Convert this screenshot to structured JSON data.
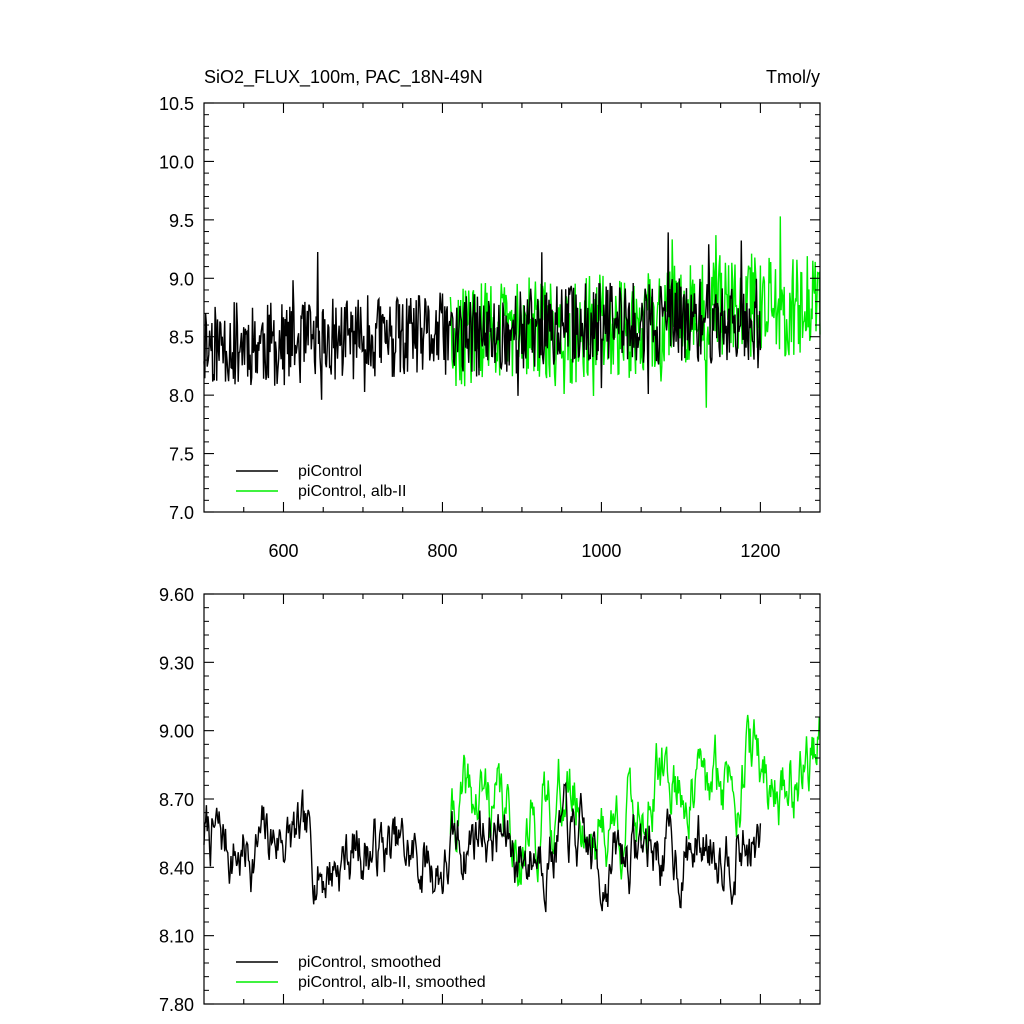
{
  "header": {
    "left_title": "SiO2_FLUX_100m, PAC_18N-49N",
    "right_title": "Tmol/y"
  },
  "colors": {
    "piControl": "#000000",
    "albII": "#00ee00"
  },
  "chart_data": [
    {
      "type": "line",
      "xlim": [
        500,
        1275
      ],
      "ylim": [
        7.0,
        10.5
      ],
      "yticks": [
        "7.0",
        "7.5",
        "8.0",
        "8.5",
        "9.0",
        "9.5",
        "10.0",
        "10.5"
      ],
      "xticks": [
        "600",
        "800",
        "1000",
        "1200"
      ],
      "legend_position": "bottom-left",
      "series": [
        {
          "name": "piControl",
          "x_start": 500,
          "x_end": 1200,
          "baseline": [
            8.45,
            8.45,
            8.43,
            8.46,
            8.5,
            8.48,
            8.52,
            8.5,
            8.55,
            8.6,
            8.62,
            8.6,
            8.65,
            8.62,
            8.66
          ],
          "noise_amp": 0.45,
          "seed": 11
        },
        {
          "name": "piControl, alb-II",
          "x_start": 810,
          "x_end": 1275,
          "baseline": [
            8.48,
            8.55,
            8.6,
            8.5,
            8.62,
            8.55,
            8.7,
            8.75,
            8.8,
            8.72,
            8.85
          ],
          "noise_amp": 0.55,
          "seed": 29
        }
      ]
    },
    {
      "type": "line",
      "xlim": [
        500,
        1275
      ],
      "ylim": [
        7.8,
        9.6
      ],
      "yticks": [
        "7.80",
        "8.10",
        "8.40",
        "8.70",
        "9.00",
        "9.30",
        "9.60"
      ],
      "xticks": [],
      "legend_position": "bottom-left",
      "series": [
        {
          "name": "piControl, smoothed",
          "x_start": 500,
          "x_end": 1200,
          "baseline": [
            8.55,
            8.45,
            8.55,
            8.4,
            8.5,
            8.45,
            8.4,
            8.6,
            8.45,
            8.55,
            8.4,
            8.5,
            8.45,
            8.55,
            8.45
          ],
          "noise_amp": 0.22,
          "seed": 7
        },
        {
          "name": "piControl, alb-II, smoothed",
          "x_start": 810,
          "x_end": 1275,
          "baseline": [
            8.6,
            8.7,
            8.5,
            8.75,
            8.55,
            8.65,
            8.8,
            8.7,
            8.9,
            8.75,
            8.95
          ],
          "noise_amp": 0.25,
          "seed": 41
        }
      ]
    }
  ]
}
